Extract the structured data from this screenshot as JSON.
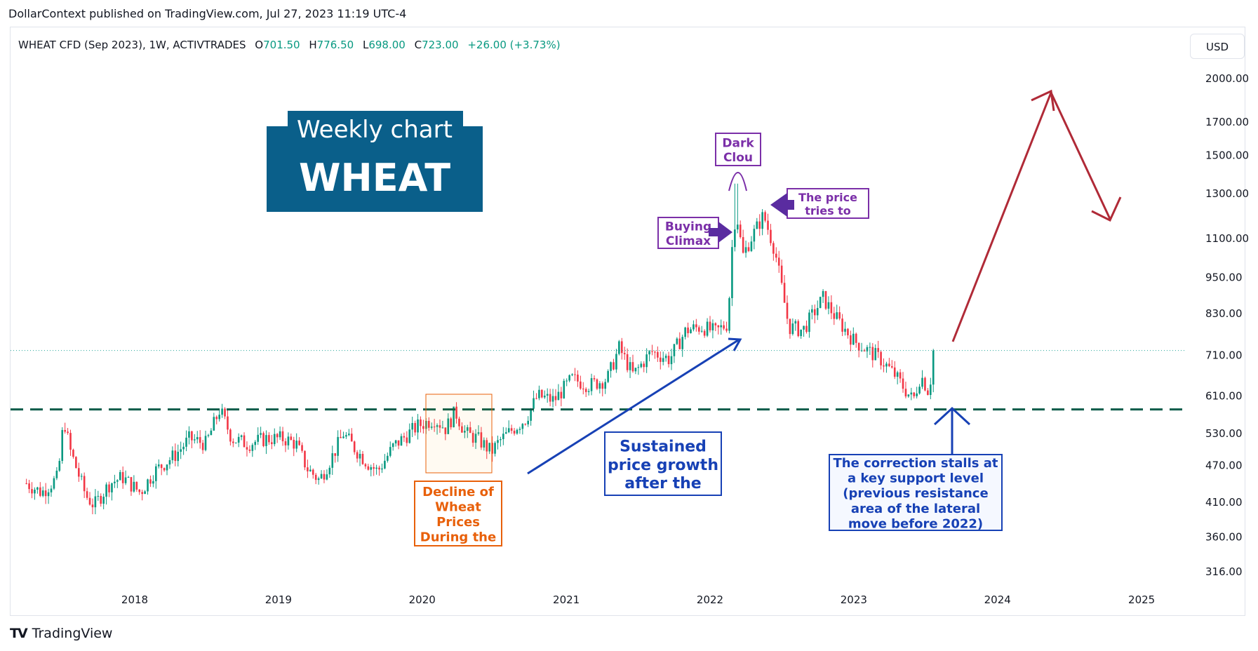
{
  "header": {
    "publisher": "DollarContext published on TradingView.com, Jul 27, 2023 11:19 UTC-4"
  },
  "legend": {
    "symbol": "WHEAT CFD (Sep 2023), 1W, ACTIVTRADES",
    "o_label": "O",
    "o_value": "701.50",
    "h_label": "H",
    "h_value": "776.50",
    "l_label": "L",
    "l_value": "698.00",
    "c_label": "C",
    "c_value": "723.00",
    "change": "+26.00 (+3.73%)"
  },
  "currency": "USD",
  "footer": {
    "brand": "TradingView",
    "logo": "TV"
  },
  "title_box": {
    "line1": "Weekly chart",
    "line2": "WHEAT"
  },
  "annotations": {
    "dark_cloud": "Dark\nClou",
    "price_tries": "The price\ntries to",
    "buying_climax": "Buying\nClimax",
    "decline": "Decline of\nWheat\nPrices\nDuring the",
    "sustained": "Sustained\nprice growth\nafter the",
    "correction": "The correction stalls at\na key support level\n(previous resistance\narea of the lateral\nmove before 2022)"
  },
  "colors": {
    "up": "#089981",
    "down": "#f23645",
    "support": "#0b5c4a",
    "title_bg": "#0a5f8a",
    "purple": "#7b2fa8",
    "blue": "#1741b5",
    "orange": "#e8600a",
    "projection": "#b02a37",
    "last_price": "#26a69a"
  },
  "chart_data": {
    "type": "candlestick",
    "timeframe": "1W",
    "x_ticks": [
      "2018",
      "2019",
      "2020",
      "2021",
      "2022",
      "2023",
      "2024",
      "2025"
    ],
    "y_ticks": [
      "2000.00",
      "1700.00",
      "1500.00",
      "1300.00",
      "1100.00",
      "950.00",
      "830.00",
      "710.00",
      "610.00",
      "530.00",
      "470.00",
      "410.00",
      "360.00",
      "316.00"
    ],
    "y_scale": "log",
    "last_close": 723,
    "support_level": 580,
    "path": [
      [
        "2017-04-01",
        440
      ],
      [
        "2017-05-10",
        425
      ],
      [
        "2017-06-20",
        450
      ],
      [
        "2017-07-05",
        560
      ],
      [
        "2017-07-20",
        500
      ],
      [
        "2017-08-30",
        420
      ],
      [
        "2017-09-20",
        405
      ],
      [
        "2017-10-30",
        440
      ],
      [
        "2017-12-01",
        450
      ],
      [
        "2018-01-15",
        425
      ],
      [
        "2018-02-20",
        460
      ],
      [
        "2018-04-15",
        490
      ],
      [
        "2018-05-20",
        520
      ],
      [
        "2018-07-01",
        510
      ],
      [
        "2018-08-05",
        580
      ],
      [
        "2018-09-05",
        520
      ],
      [
        "2018-10-15",
        510
      ],
      [
        "2018-12-01",
        520
      ],
      [
        "2019-01-15",
        520
      ],
      [
        "2019-02-15",
        510
      ],
      [
        "2019-03-15",
        465
      ],
      [
        "2019-04-15",
        445
      ],
      [
        "2019-05-20",
        490
      ],
      [
        "2019-06-15",
        530
      ],
      [
        "2019-07-15",
        500
      ],
      [
        "2019-08-15",
        475
      ],
      [
        "2019-09-10",
        460
      ],
      [
        "2019-10-20",
        505
      ],
      [
        "2019-12-20",
        545
      ],
      [
        "2020-02-01",
        560
      ],
      [
        "2020-03-01",
        540
      ],
      [
        "2020-03-25",
        575
      ],
      [
        "2020-04-20",
        530
      ],
      [
        "2020-05-20",
        520
      ],
      [
        "2020-06-25",
        495
      ],
      [
        "2020-07-15",
        515
      ],
      [
        "2020-08-20",
        540
      ],
      [
        "2020-09-20",
        560
      ],
      [
        "2020-10-20",
        610
      ],
      [
        "2020-12-01",
        600
      ],
      [
        "2021-01-15",
        650
      ],
      [
        "2021-03-01",
        635
      ],
      [
        "2021-04-15",
        650
      ],
      [
        "2021-05-15",
        730
      ],
      [
        "2021-06-20",
        660
      ],
      [
        "2021-08-05",
        720
      ],
      [
        "2021-09-20",
        700
      ],
      [
        "2021-11-01",
        780
      ],
      [
        "2021-12-10",
        790
      ],
      [
        "2022-01-15",
        775
      ],
      [
        "2022-02-15",
        800
      ],
      [
        "2022-03-01",
        1150
      ],
      [
        "2022-03-10",
        1200
      ],
      [
        "2022-03-25",
        1030
      ],
      [
        "2022-04-15",
        1100
      ],
      [
        "2022-05-17",
        1200
      ],
      [
        "2022-06-15",
        1050
      ],
      [
        "2022-07-20",
        790
      ],
      [
        "2022-08-25",
        780
      ],
      [
        "2022-10-15",
        880
      ],
      [
        "2022-11-15",
        820
      ],
      [
        "2023-01-01",
        750
      ],
      [
        "2023-02-10",
        720
      ],
      [
        "2023-03-10",
        700
      ],
      [
        "2023-04-15",
        660
      ],
      [
        "2023-05-15",
        620
      ],
      [
        "2023-06-01",
        600
      ],
      [
        "2023-06-20",
        660
      ],
      [
        "2023-07-10",
        620
      ],
      [
        "2023-07-27",
        723
      ]
    ],
    "highs": {
      "2022-03-08": 1350
    }
  }
}
